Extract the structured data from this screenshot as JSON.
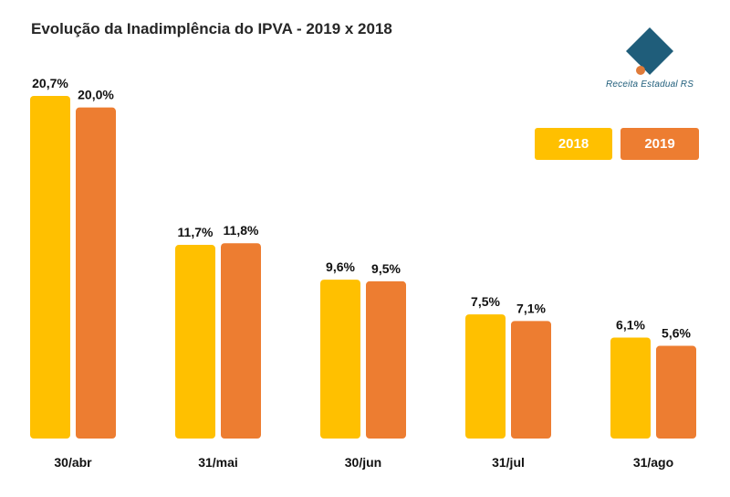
{
  "colors": {
    "s2018": "#FFC000",
    "s2019": "#ED7D31",
    "logo": "#1f5d7a",
    "logo_dot": "#e07b39"
  },
  "logo": {
    "icon": "diamond-logo-icon",
    "text": "Receita Estadual RS"
  },
  "chart_data": {
    "type": "bar",
    "title": "Evolução da Inadimplência do IPVA - 2019 x 2018",
    "xlabel": "",
    "ylabel": "",
    "ylim": [
      0,
      20.7
    ],
    "grid": false,
    "legend_position": "top-right",
    "categories": [
      "30/abr",
      "31/mai",
      "30/jun",
      "31/jul",
      "31/ago"
    ],
    "series": [
      {
        "name": "2018",
        "values": [
          20.7,
          11.7,
          9.6,
          7.5,
          6.1
        ],
        "labels": [
          "20,7%",
          "11,7%",
          "9,6%",
          "7,5%",
          "6,1%"
        ]
      },
      {
        "name": "2019",
        "values": [
          20.0,
          11.8,
          9.5,
          7.1,
          5.6
        ],
        "labels": [
          "20,0%",
          "11,8%",
          "9,5%",
          "7,1%",
          "5,6%"
        ]
      }
    ]
  }
}
